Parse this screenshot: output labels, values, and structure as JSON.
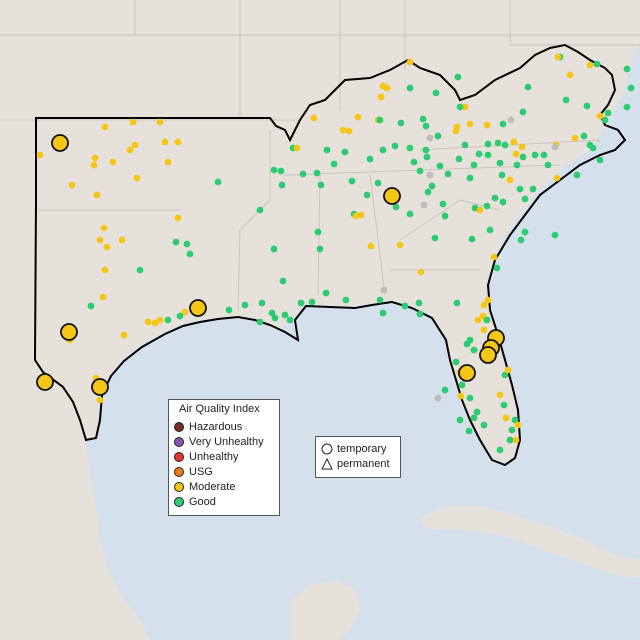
{
  "legend": {
    "title": "Air Quality Index",
    "categories": [
      {
        "label": "Hazardous",
        "color": "#7e2a22"
      },
      {
        "label": "Very Unhealthy",
        "color": "#8a55b0"
      },
      {
        "label": "Unhealthy",
        "color": "#e0392f"
      },
      {
        "label": "USG",
        "color": "#ec7a1d"
      },
      {
        "label": "Moderate",
        "color": "#f5c518"
      },
      {
        "label": "Good",
        "color": "#2ecc71"
      }
    ]
  },
  "monitor_types": [
    {
      "label": "temporary",
      "icon": "circle-icon"
    },
    {
      "label": "permanent",
      "icon": "triangle-icon"
    }
  ],
  "colors": {
    "water": "#d4e1ec",
    "land": "#e8e4dd",
    "outside_land": "#e5e1da",
    "study_border": "#000000",
    "no_data_site": "#bdbdbd"
  }
}
